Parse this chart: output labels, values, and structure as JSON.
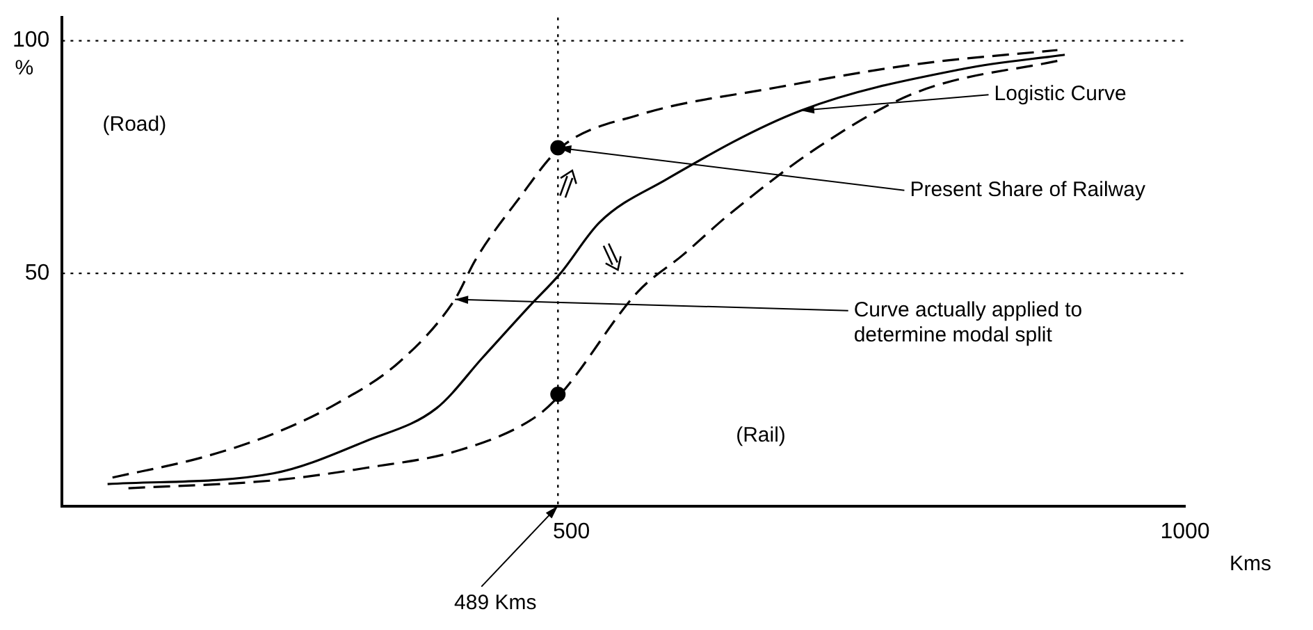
{
  "chart_data": {
    "type": "line",
    "xlabel": "Kms",
    "ylabel": "%",
    "xlim": [
      85,
      1000
    ],
    "xticks": [
      500,
      1000
    ],
    "ylim": [
      0,
      105
    ],
    "yticks": [
      50,
      100
    ],
    "grid": false,
    "legend": false,
    "marker": "none",
    "series": [
      {
        "color": "#000000",
        "line_style": "dashed",
        "x": [
          126,
          200,
          257,
          308,
          360,
          405,
          422,
          457,
          491,
          554,
          668,
          782,
          896
        ],
        "values": [
          6.1,
          10.5,
          15.5,
          21.9,
          31,
          44.4,
          53,
          66,
          77,
          84,
          90,
          95,
          98
        ]
      },
      {
        "color": "#000000",
        "line_style": "solid",
        "x": [
          122,
          257,
          333,
          390,
          428,
          466,
          491,
          523,
          576,
          687,
          820,
          902
        ],
        "values": [
          4.7,
          7,
          14,
          21,
          32,
          43,
          50,
          61,
          70,
          85,
          94,
          97
        ]
      },
      {
        "color": "#000000",
        "line_style": "dashed",
        "x": [
          139,
          257,
          333,
          409,
          470,
          491,
          554,
          591,
          630,
          706,
          782,
          902
        ],
        "values": [
          3.8,
          5.5,
          8.2,
          12,
          19,
          24,
          46,
          54,
          63,
          78,
          89,
          96
        ]
      },
      {
        "type": "scatter",
        "color": "#000000",
        "marker": "circle",
        "x": [
          489,
          489
        ],
        "values": [
          77,
          24
        ]
      }
    ],
    "ref_lines": [
      {
        "axis": "y",
        "value": 100,
        "line_style": "dotted"
      },
      {
        "axis": "y",
        "value": 50,
        "line_style": "dotted"
      },
      {
        "axis": "x",
        "value": 489,
        "label": "489 Kms",
        "line_style": "dotted"
      }
    ],
    "annotations": [
      "(Road)",
      "(Rail)",
      {
        "text": "Logistic Curve",
        "x": 687,
        "y": 85
      },
      {
        "text": "Present Share of Railway",
        "x": 489,
        "y": 77
      },
      {
        "text": "Curve actually applied to determine modal split",
        "x": 405,
        "y": 44.4
      }
    ]
  }
}
